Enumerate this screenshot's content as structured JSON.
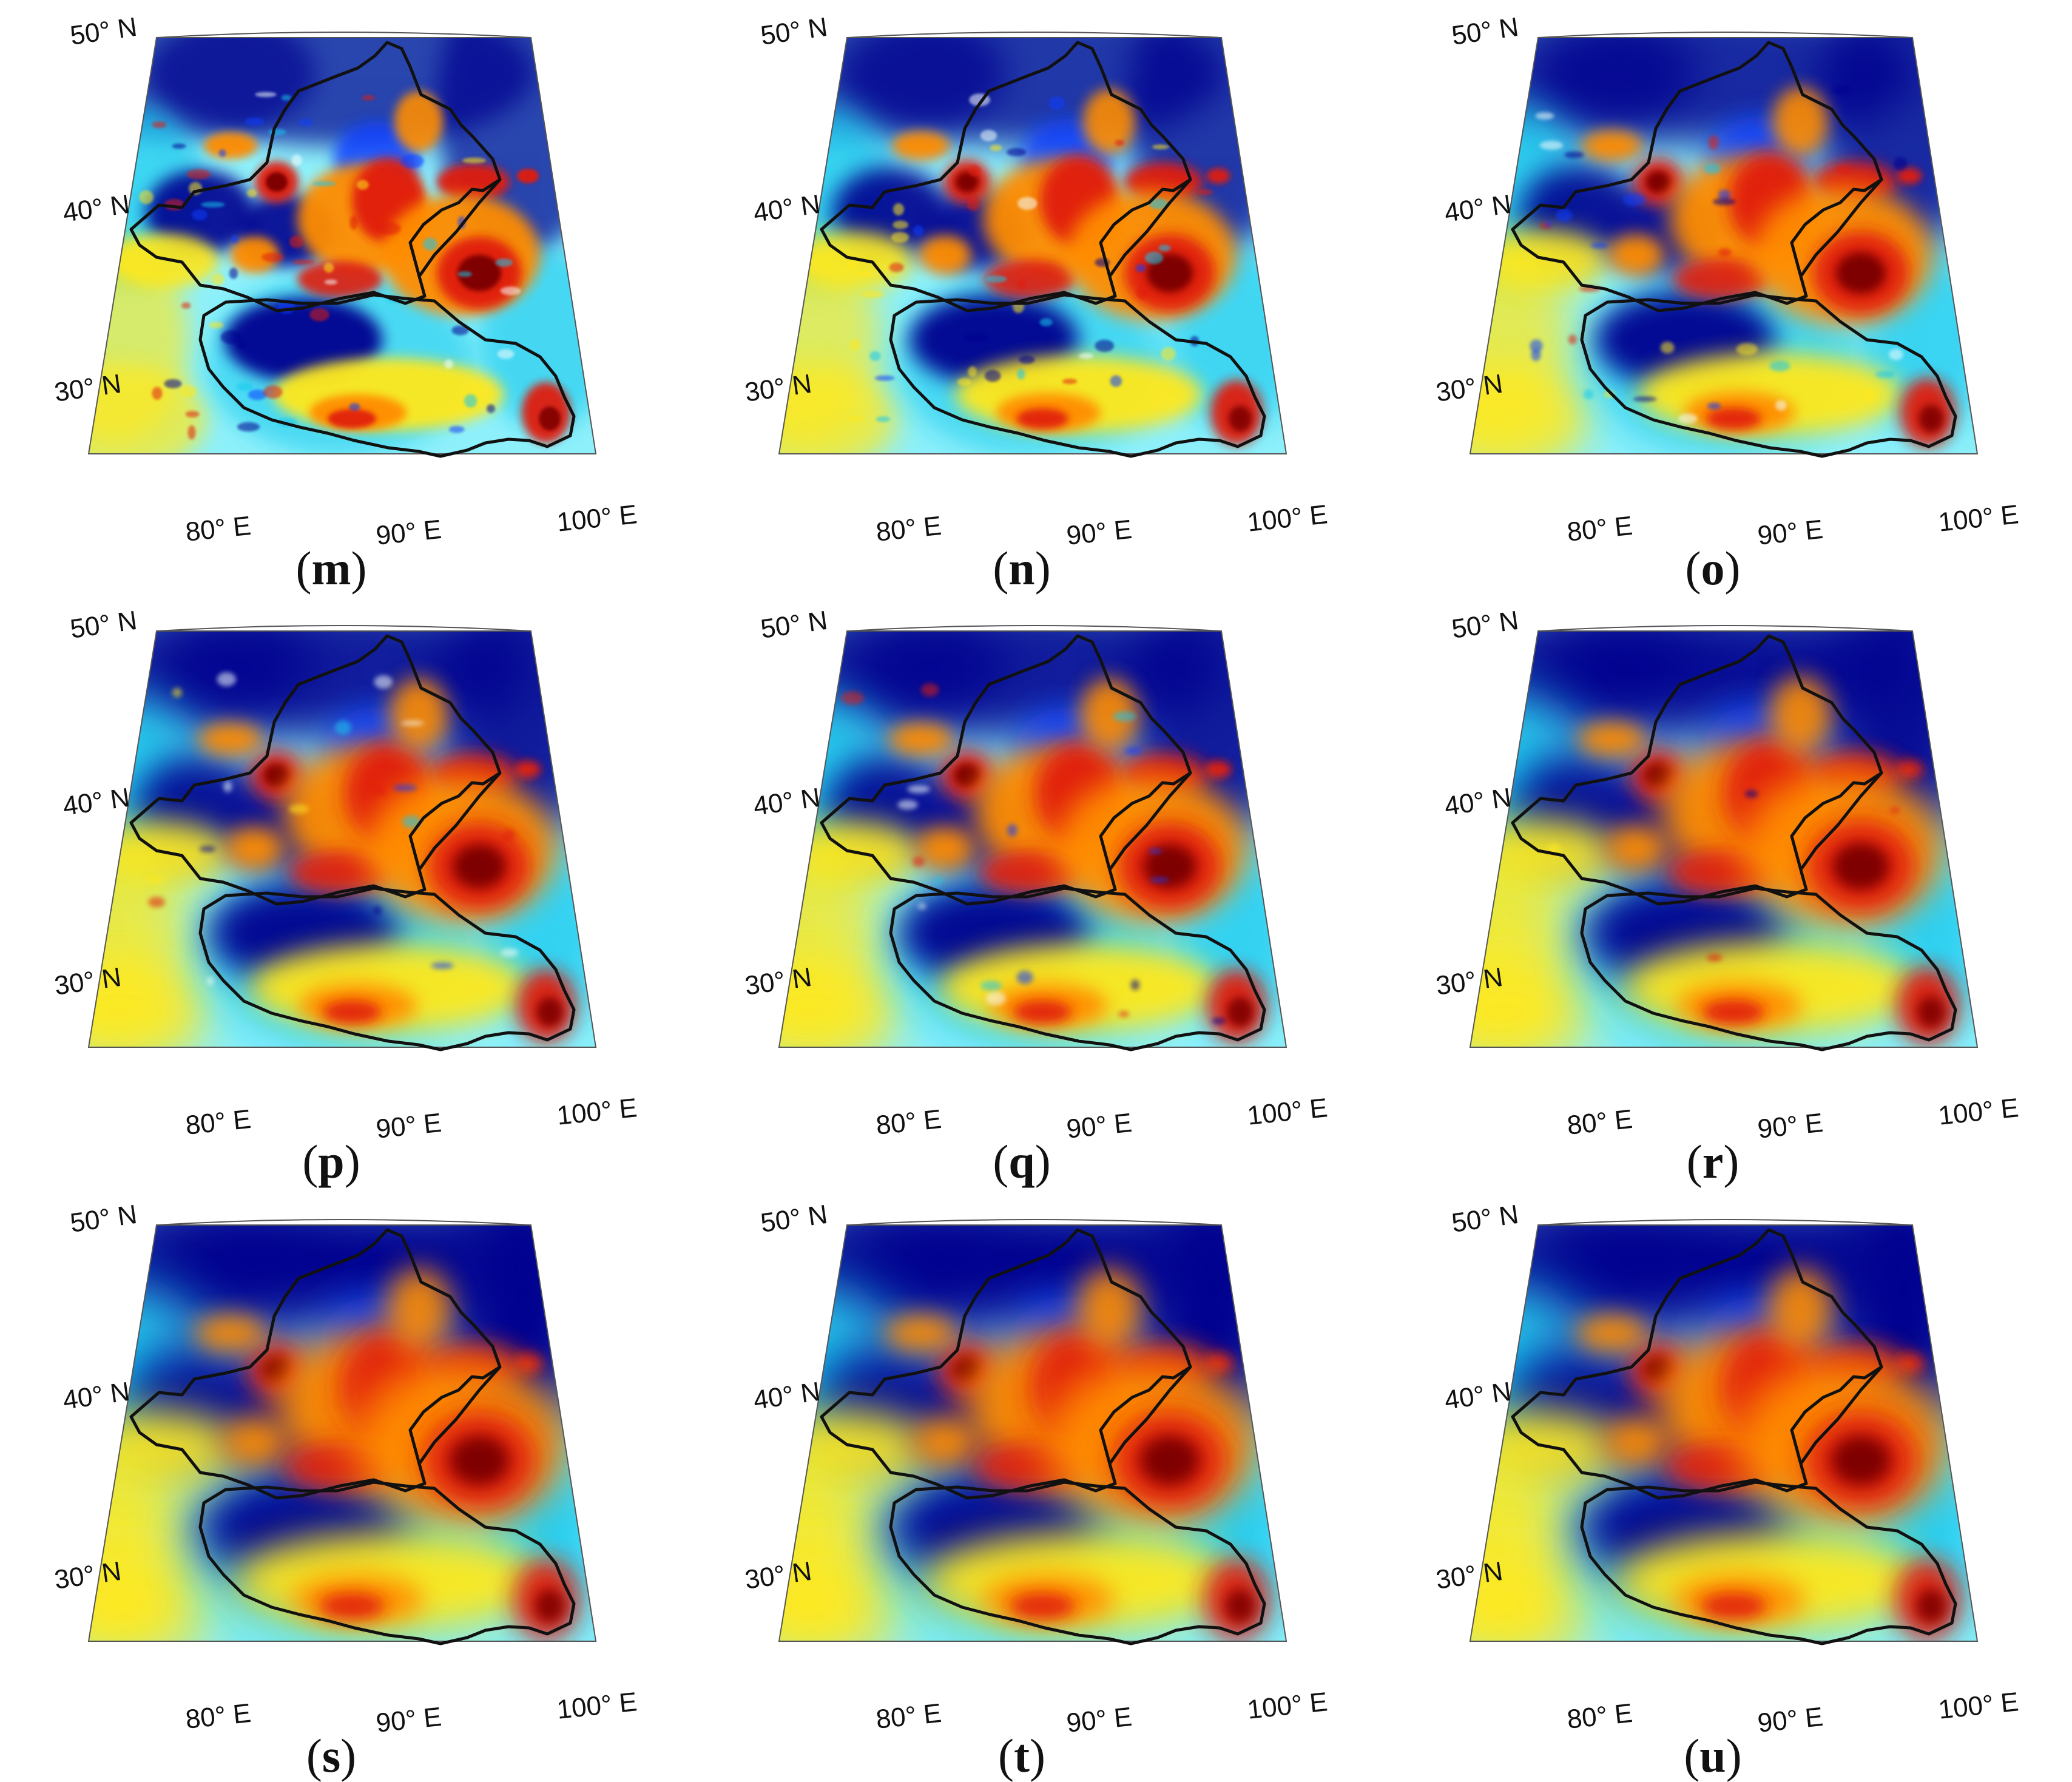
{
  "figure": {
    "panels": [
      {
        "letter": "m",
        "detail": 0
      },
      {
        "letter": "n",
        "detail": 1
      },
      {
        "letter": "o",
        "detail": 2
      },
      {
        "letter": "p",
        "detail": 3
      },
      {
        "letter": "q",
        "detail": 3
      },
      {
        "letter": "r",
        "detail": 4
      },
      {
        "letter": "s",
        "detail": 5
      },
      {
        "letter": "t",
        "detail": 5
      },
      {
        "letter": "u",
        "detail": 5
      }
    ],
    "lat_labels": [
      "50° N",
      "40° N",
      "30° N"
    ],
    "lon_labels": [
      "80° E",
      "90° E",
      "100° E"
    ],
    "colors": {
      "deep_blue": "#00008f",
      "blue": "#0a3cff",
      "cyan": "#19c8ee",
      "light_cyan": "#8ef0fa",
      "white": "#f6ffff",
      "yellow": "#ffe81a",
      "orange": "#ff8c00",
      "red": "#e01a0a",
      "dark_red": "#7f0000",
      "outline": "#111111"
    }
  }
}
